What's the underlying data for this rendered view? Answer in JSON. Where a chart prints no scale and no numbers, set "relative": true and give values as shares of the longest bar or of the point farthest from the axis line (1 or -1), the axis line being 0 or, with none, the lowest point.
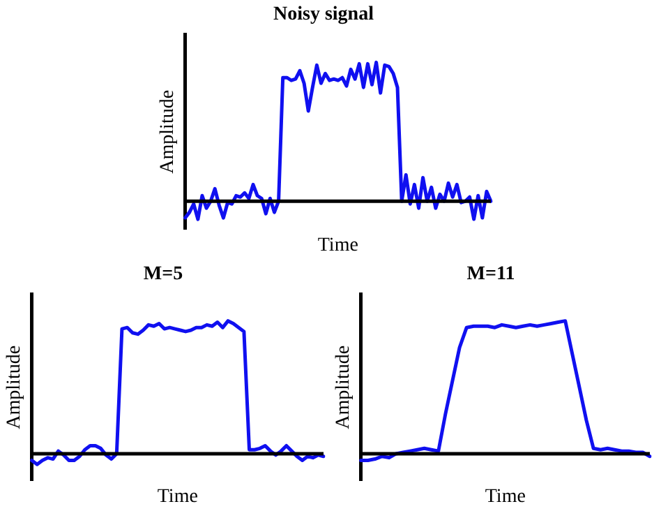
{
  "chart_data": [
    {
      "type": "line",
      "title": "Noisy signal",
      "xlabel": "Time",
      "ylabel": "Amplitude",
      "relative": true,
      "legend": false,
      "grid": false,
      "marker": "none",
      "line_style": "solid",
      "categories": [
        null,
        null,
        null,
        null,
        null,
        null,
        null,
        null,
        null,
        null,
        null,
        null,
        null,
        null,
        null,
        null,
        null,
        null,
        null,
        null,
        null,
        null,
        null,
        null,
        null,
        null,
        null,
        null,
        null,
        null,
        null,
        null,
        null,
        null,
        null,
        null,
        null,
        null,
        null,
        null,
        null,
        null,
        null,
        null,
        null,
        null,
        null,
        null,
        null,
        null,
        null,
        null,
        null,
        null,
        null,
        null,
        null,
        null,
        null,
        null,
        null,
        null,
        null,
        null,
        null,
        null,
        null,
        null,
        null,
        null,
        null,
        null,
        null
      ],
      "series": [
        {
          "color": "#1010f0",
          "values": [
            -0.12,
            -0.08,
            -0.02,
            -0.13,
            0.04,
            -0.05,
            0.0,
            0.09,
            -0.03,
            -0.12,
            -0.01,
            -0.02,
            0.04,
            0.03,
            0.06,
            0.02,
            0.12,
            0.04,
            0.02,
            -0.09,
            0.02,
            -0.08,
            0.0,
            0.89,
            0.89,
            0.87,
            0.88,
            0.94,
            0.85,
            0.65,
            0.82,
            0.98,
            0.85,
            0.92,
            0.87,
            0.88,
            0.87,
            0.89,
            0.83,
            0.95,
            0.88,
            0.99,
            0.82,
            0.99,
            0.84,
            1.0,
            0.78,
            0.98,
            0.97,
            0.92,
            0.82,
            0.0,
            0.19,
            -0.02,
            0.12,
            -0.05,
            0.17,
            0.0,
            0.1,
            -0.05,
            0.05,
            0.0,
            0.13,
            0.03,
            0.12,
            -0.01,
            0.0,
            0.03,
            -0.13,
            0.04,
            -0.12,
            0.07,
            0.0
          ]
        }
      ]
    },
    {
      "type": "line",
      "title": "M=5",
      "xlabel": "Time",
      "ylabel": "Amplitude",
      "relative": true,
      "legend": false,
      "grid": false,
      "marker": "none",
      "line_style": "solid",
      "categories": [
        null,
        null,
        null,
        null,
        null,
        null,
        null,
        null,
        null,
        null,
        null,
        null,
        null,
        null,
        null,
        null,
        null,
        null,
        null,
        null,
        null,
        null,
        null,
        null,
        null,
        null,
        null,
        null,
        null,
        null,
        null,
        null,
        null,
        null,
        null,
        null,
        null,
        null,
        null,
        null,
        null,
        null,
        null,
        null,
        null,
        null,
        null,
        null,
        null,
        null,
        null,
        null,
        null,
        null,
        null,
        null
      ],
      "series": [
        {
          "color": "#1010f0",
          "values": [
            -0.05,
            -0.08,
            -0.05,
            -0.03,
            -0.04,
            0.02,
            -0.01,
            -0.05,
            -0.05,
            -0.02,
            0.03,
            0.06,
            0.06,
            0.04,
            -0.01,
            -0.04,
            0.0,
            0.94,
            0.95,
            0.91,
            0.9,
            0.93,
            0.97,
            0.96,
            0.98,
            0.94,
            0.95,
            0.94,
            0.93,
            0.92,
            0.93,
            0.95,
            0.95,
            0.97,
            0.96,
            0.99,
            0.95,
            1.0,
            0.98,
            0.95,
            0.92,
            0.03,
            0.03,
            0.04,
            0.06,
            0.02,
            -0.01,
            0.02,
            0.06,
            0.02,
            -0.02,
            -0.05,
            -0.02,
            -0.03,
            -0.01,
            -0.02
          ]
        }
      ]
    },
    {
      "type": "line",
      "title": "M=11",
      "xlabel": "Time",
      "ylabel": "Amplitude",
      "relative": true,
      "legend": false,
      "grid": false,
      "marker": "none",
      "line_style": "solid",
      "categories": [
        null,
        null,
        null,
        null,
        null,
        null,
        null,
        null,
        null,
        null,
        null,
        null,
        null,
        null,
        null,
        null,
        null,
        null,
        null,
        null,
        null,
        null,
        null,
        null,
        null,
        null,
        null,
        null,
        null,
        null,
        null,
        null,
        null,
        null,
        null,
        null,
        null,
        null,
        null,
        null,
        null,
        null
      ],
      "series": [
        {
          "color": "#1010f0",
          "values": [
            -0.05,
            -0.05,
            -0.04,
            -0.02,
            -0.03,
            0.0,
            0.01,
            0.02,
            0.03,
            0.04,
            0.03,
            0.02,
            0.3,
            0.55,
            0.8,
            0.95,
            0.96,
            0.96,
            0.96,
            0.95,
            0.97,
            0.96,
            0.95,
            0.96,
            0.97,
            0.96,
            0.97,
            0.98,
            0.99,
            1.0,
            0.75,
            0.5,
            0.25,
            0.04,
            0.03,
            0.04,
            0.03,
            0.02,
            0.02,
            0.01,
            0.01,
            -0.02
          ]
        }
      ]
    }
  ]
}
